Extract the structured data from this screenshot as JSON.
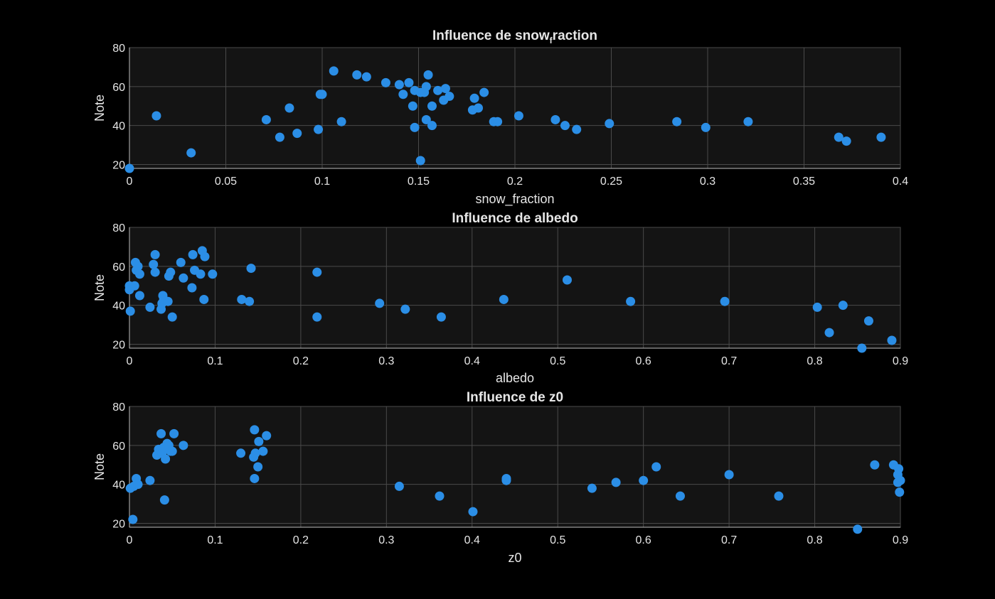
{
  "colors": {
    "background": "#000000",
    "axes_bg": "#141414",
    "marker": "#2b8ee6",
    "text": "#e6e6e6",
    "grid": "#4a4a4a"
  },
  "chart_data": [
    {
      "type": "scatter",
      "title": "Influence  de  snow",
      "title_sub": "f",
      "title_rest": "raction",
      "xlabel": "snow_fraction",
      "ylabel": "Note",
      "xlim": [
        0,
        0.4
      ],
      "ylim": [
        18,
        80
      ],
      "xticks": [
        0,
        0.05,
        0.1,
        0.15,
        0.2,
        0.25,
        0.3,
        0.35,
        0.4
      ],
      "xtick_labels": [
        "0",
        "0.05",
        "0.1",
        "0.15",
        "0.2",
        "0.25",
        "0.3",
        "0.35",
        "0.4"
      ],
      "yticks": [
        20,
        40,
        60,
        80
      ],
      "ytick_labels": [
        "20",
        "40",
        "60",
        "80"
      ],
      "grid": true,
      "points": [
        [
          0.0,
          18
        ],
        [
          0.014,
          45
        ],
        [
          0.032,
          26
        ],
        [
          0.071,
          43
        ],
        [
          0.078,
          34
        ],
        [
          0.083,
          49
        ],
        [
          0.087,
          36
        ],
        [
          0.098,
          38
        ],
        [
          0.099,
          56
        ],
        [
          0.1,
          56
        ],
        [
          0.106,
          68
        ],
        [
          0.11,
          42
        ],
        [
          0.118,
          66
        ],
        [
          0.123,
          65
        ],
        [
          0.133,
          62
        ],
        [
          0.14,
          61
        ],
        [
          0.142,
          56
        ],
        [
          0.145,
          62
        ],
        [
          0.147,
          50
        ],
        [
          0.148,
          39
        ],
        [
          0.148,
          58
        ],
        [
          0.151,
          57
        ],
        [
          0.151,
          22
        ],
        [
          0.153,
          57
        ],
        [
          0.154,
          60
        ],
        [
          0.154,
          43
        ],
        [
          0.155,
          66
        ],
        [
          0.157,
          50
        ],
        [
          0.157,
          40
        ],
        [
          0.16,
          58
        ],
        [
          0.163,
          53
        ],
        [
          0.164,
          59
        ],
        [
          0.166,
          55
        ],
        [
          0.178,
          48
        ],
        [
          0.179,
          54
        ],
        [
          0.181,
          49
        ],
        [
          0.184,
          57
        ],
        [
          0.189,
          42
        ],
        [
          0.191,
          42
        ],
        [
          0.202,
          45
        ],
        [
          0.221,
          43
        ],
        [
          0.226,
          40
        ],
        [
          0.232,
          38
        ],
        [
          0.249,
          41
        ],
        [
          0.284,
          42
        ],
        [
          0.299,
          39
        ],
        [
          0.321,
          42
        ],
        [
          0.368,
          34
        ],
        [
          0.372,
          32
        ],
        [
          0.39,
          34
        ]
      ]
    },
    {
      "type": "scatter",
      "title": "Influence de albedo",
      "xlabel": "albedo",
      "ylabel": "Note",
      "xlim": [
        0,
        0.9
      ],
      "ylim": [
        18,
        80
      ],
      "xticks": [
        0,
        0.1,
        0.2,
        0.3,
        0.4,
        0.5,
        0.6,
        0.7,
        0.8,
        0.9
      ],
      "xtick_labels": [
        "0",
        "0.1",
        "0.2",
        "0.3",
        "0.4",
        "0.5",
        "0.6",
        "0.7",
        "0.8",
        "0.9"
      ],
      "yticks": [
        20,
        40,
        60,
        80
      ],
      "ytick_labels": [
        "20",
        "40",
        "60",
        "80"
      ],
      "grid": true,
      "points": [
        [
          0.0,
          50
        ],
        [
          0.0,
          48
        ],
        [
          0.001,
          37
        ],
        [
          0.006,
          50
        ],
        [
          0.007,
          62
        ],
        [
          0.008,
          58
        ],
        [
          0.01,
          60
        ],
        [
          0.012,
          56
        ],
        [
          0.012,
          45
        ],
        [
          0.024,
          39
        ],
        [
          0.028,
          61
        ],
        [
          0.03,
          57
        ],
        [
          0.03,
          66
        ],
        [
          0.037,
          38
        ],
        [
          0.038,
          41
        ],
        [
          0.039,
          45
        ],
        [
          0.04,
          43
        ],
        [
          0.045,
          42
        ],
        [
          0.046,
          55
        ],
        [
          0.048,
          57
        ],
        [
          0.05,
          34
        ],
        [
          0.06,
          62
        ],
        [
          0.063,
          54
        ],
        [
          0.073,
          49
        ],
        [
          0.074,
          66
        ],
        [
          0.076,
          58
        ],
        [
          0.083,
          56
        ],
        [
          0.085,
          68
        ],
        [
          0.087,
          43
        ],
        [
          0.088,
          65
        ],
        [
          0.097,
          56
        ],
        [
          0.131,
          43
        ],
        [
          0.14,
          42
        ],
        [
          0.142,
          59
        ],
        [
          0.219,
          57
        ],
        [
          0.219,
          34
        ],
        [
          0.292,
          41
        ],
        [
          0.322,
          38
        ],
        [
          0.364,
          34
        ],
        [
          0.437,
          43
        ],
        [
          0.511,
          53
        ],
        [
          0.585,
          42
        ],
        [
          0.695,
          42
        ],
        [
          0.803,
          39
        ],
        [
          0.817,
          26
        ],
        [
          0.833,
          40
        ],
        [
          0.855,
          18
        ],
        [
          0.863,
          32
        ],
        [
          0.89,
          22
        ]
      ]
    },
    {
      "type": "scatter",
      "title": "Influence de z0",
      "xlabel": "z0",
      "ylabel": "Note",
      "xlim": [
        0,
        0.9
      ],
      "ylim": [
        18,
        80
      ],
      "xticks": [
        0,
        0.1,
        0.2,
        0.3,
        0.4,
        0.5,
        0.6,
        0.7,
        0.8,
        0.9
      ],
      "xtick_labels": [
        "0",
        "0.1",
        "0.2",
        "0.3",
        "0.4",
        "0.5",
        "0.6",
        "0.7",
        "0.8",
        "0.9"
      ],
      "yticks": [
        20,
        40,
        60,
        80
      ],
      "ytick_labels": [
        "20",
        "40",
        "60",
        "80"
      ],
      "grid": true,
      "points": [
        [
          0.001,
          38
        ],
        [
          0.004,
          22
        ],
        [
          0.005,
          39
        ],
        [
          0.008,
          43
        ],
        [
          0.01,
          40
        ],
        [
          0.024,
          42
        ],
        [
          0.032,
          55
        ],
        [
          0.034,
          58
        ],
        [
          0.036,
          57
        ],
        [
          0.037,
          66
        ],
        [
          0.038,
          56
        ],
        [
          0.04,
          59
        ],
        [
          0.041,
          32
        ],
        [
          0.042,
          53
        ],
        [
          0.044,
          61
        ],
        [
          0.046,
          60
        ],
        [
          0.048,
          57
        ],
        [
          0.05,
          57
        ],
        [
          0.052,
          66
        ],
        [
          0.063,
          60
        ],
        [
          0.13,
          56
        ],
        [
          0.145,
          54
        ],
        [
          0.146,
          68
        ],
        [
          0.146,
          43
        ],
        [
          0.147,
          56
        ],
        [
          0.15,
          49
        ],
        [
          0.151,
          62
        ],
        [
          0.156,
          57
        ],
        [
          0.16,
          65
        ],
        [
          0.315,
          39
        ],
        [
          0.362,
          34
        ],
        [
          0.401,
          26
        ],
        [
          0.44,
          42
        ],
        [
          0.44,
          43
        ],
        [
          0.54,
          38
        ],
        [
          0.568,
          41
        ],
        [
          0.6,
          42
        ],
        [
          0.615,
          49
        ],
        [
          0.643,
          34
        ],
        [
          0.7,
          45
        ],
        [
          0.758,
          34
        ],
        [
          0.85,
          17
        ],
        [
          0.87,
          50
        ],
        [
          0.892,
          50
        ],
        [
          0.897,
          45
        ],
        [
          0.897,
          41
        ],
        [
          0.898,
          48
        ],
        [
          0.899,
          36
        ],
        [
          0.9,
          42
        ]
      ]
    }
  ]
}
